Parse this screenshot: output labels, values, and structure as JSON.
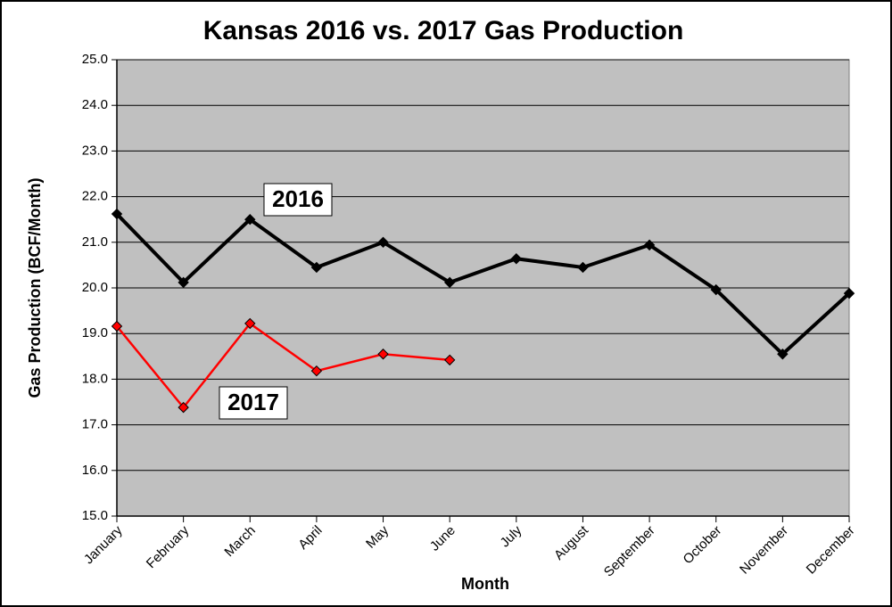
{
  "chart_data": {
    "type": "line",
    "title": "Kansas 2016 vs. 2017 Gas Production",
    "x_label": "Month",
    "y_label": "Gas Production (BCF/Month)",
    "categories": [
      "January",
      "February",
      "March",
      "April",
      "May",
      "June",
      "July",
      "August",
      "September",
      "October",
      "November",
      "December"
    ],
    "series": [
      {
        "name": "2016",
        "color": "#000000",
        "values": [
          21.62,
          20.12,
          21.5,
          20.45,
          21.0,
          20.12,
          20.64,
          20.45,
          20.94,
          19.96,
          18.55,
          19.88
        ]
      },
      {
        "name": "2017",
        "color": "#ff0000",
        "values": [
          19.16,
          17.38,
          19.22,
          18.18,
          18.55,
          18.42,
          null,
          null,
          null,
          null,
          null,
          null
        ]
      }
    ],
    "ylim": [
      15,
      25
    ],
    "yticks": [
      {
        "value": 15,
        "label": "15.0"
      },
      {
        "value": 16,
        "label": "16.0"
      },
      {
        "value": 17,
        "label": "17.0"
      },
      {
        "value": 18,
        "label": "18.0"
      },
      {
        "value": 19,
        "label": "19.0"
      },
      {
        "value": 20,
        "label": "20.0"
      },
      {
        "value": 21,
        "label": "21.0"
      },
      {
        "value": 22,
        "label": "22.0"
      },
      {
        "value": 23,
        "label": "23.0"
      },
      {
        "value": 24,
        "label": "24.0"
      },
      {
        "value": 25,
        "label": "25.0"
      }
    ],
    "grid": true
  }
}
